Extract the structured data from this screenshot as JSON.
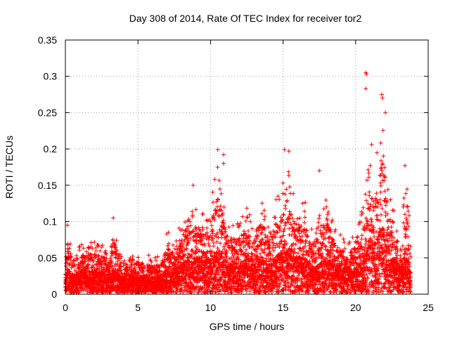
{
  "chart_data": {
    "type": "scatter",
    "title": "Day 308 of 2014, Rate Of TEC Index for receiver tor2",
    "xlabel": "GPS time / hours",
    "ylabel": "ROTI / TECUs",
    "xlim": [
      0,
      25
    ],
    "ylim": [
      0,
      0.35
    ],
    "xticks": [
      0,
      5,
      10,
      15,
      20,
      25
    ],
    "xtick_labels": [
      "0",
      "5",
      "10",
      "15",
      "20",
      "25"
    ],
    "yticks": [
      0,
      0.05,
      0.1,
      0.15,
      0.2,
      0.25,
      0.3,
      0.35
    ],
    "ytick_labels": [
      "0",
      "0.05",
      "0.1",
      "0.15",
      "0.2",
      "0.25",
      "0.3",
      "0.35"
    ],
    "grid": true,
    "marker": "+",
    "color": "#ff0000",
    "series": [
      {
        "name": "ROTI",
        "notable_points": [
          {
            "x": 0.15,
            "y": 0.095
          },
          {
            "x": 3.3,
            "y": 0.105
          },
          {
            "x": 7.1,
            "y": 0.085
          },
          {
            "x": 8.8,
            "y": 0.15
          },
          {
            "x": 10.5,
            "y": 0.199
          },
          {
            "x": 10.9,
            "y": 0.192
          },
          {
            "x": 10.9,
            "y": 0.18
          },
          {
            "x": 15.1,
            "y": 0.199
          },
          {
            "x": 15.4,
            "y": 0.197
          },
          {
            "x": 17.5,
            "y": 0.17
          },
          {
            "x": 20.7,
            "y": 0.305
          },
          {
            "x": 20.75,
            "y": 0.303
          },
          {
            "x": 20.7,
            "y": 0.283
          },
          {
            "x": 21.8,
            "y": 0.275
          },
          {
            "x": 21.85,
            "y": 0.27
          },
          {
            "x": 22.05,
            "y": 0.25
          },
          {
            "x": 21.1,
            "y": 0.206
          },
          {
            "x": 23.4,
            "y": 0.177
          }
        ],
        "envelope": {
          "x": [
            0,
            0.15,
            0.5,
            1,
            1.5,
            2,
            2.5,
            3,
            3.3,
            3.8,
            4.5,
            5,
            5.5,
            6,
            6.5,
            7,
            7.5,
            8,
            8.3,
            8.7,
            9,
            9.5,
            10,
            10.4,
            10.8,
            11,
            11.5,
            12,
            12.5,
            13,
            13.5,
            14,
            14.5,
            15,
            15.3,
            15.6,
            16,
            16.5,
            17,
            17.5,
            18,
            18.5,
            19,
            19.5,
            20,
            20.5,
            20.8,
            21,
            21.3,
            21.6,
            21.9,
            22.2,
            22.5,
            22.8,
            23,
            23.3,
            23.6,
            23.8
          ],
          "upper": [
            0.04,
            0.095,
            0.06,
            0.07,
            0.07,
            0.072,
            0.07,
            0.065,
            0.105,
            0.06,
            0.05,
            0.06,
            0.05,
            0.06,
            0.05,
            0.085,
            0.075,
            0.1,
            0.12,
            0.115,
            0.125,
            0.11,
            0.12,
            0.18,
            0.16,
            0.11,
            0.1,
            0.105,
            0.13,
            0.11,
            0.135,
            0.1,
            0.13,
            0.16,
            0.18,
            0.15,
            0.13,
            0.13,
            0.09,
            0.11,
            0.14,
            0.1,
            0.08,
            0.07,
            0.09,
            0.12,
            0.16,
            0.2,
            0.17,
            0.22,
            0.26,
            0.17,
            0.12,
            0.11,
            0.05,
            0.13,
            0.16,
            0.08
          ],
          "median": [
            0.015,
            0.03,
            0.02,
            0.025,
            0.025,
            0.028,
            0.025,
            0.022,
            0.03,
            0.02,
            0.018,
            0.02,
            0.018,
            0.02,
            0.02,
            0.025,
            0.03,
            0.035,
            0.04,
            0.04,
            0.045,
            0.04,
            0.045,
            0.055,
            0.05,
            0.04,
            0.035,
            0.035,
            0.045,
            0.04,
            0.045,
            0.035,
            0.045,
            0.055,
            0.06,
            0.055,
            0.045,
            0.045,
            0.03,
            0.035,
            0.045,
            0.035,
            0.03,
            0.028,
            0.03,
            0.04,
            0.055,
            0.07,
            0.06,
            0.075,
            0.085,
            0.06,
            0.045,
            0.04,
            0.02,
            0.045,
            0.05,
            0.025
          ]
        }
      }
    ]
  }
}
